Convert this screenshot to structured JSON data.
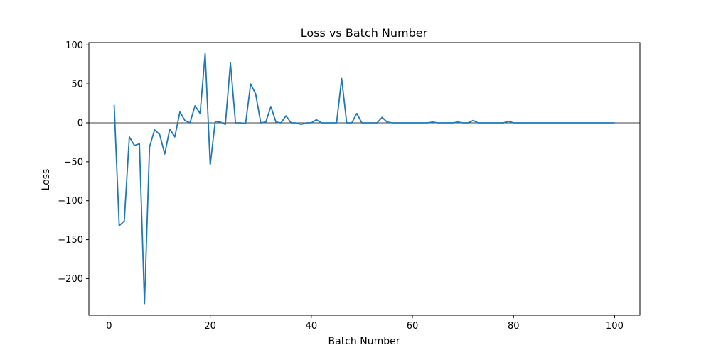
{
  "chart_data": {
    "type": "line",
    "title": "Loss vs Batch Number",
    "xlabel": "Batch Number",
    "ylabel": "Loss",
    "xlim": [
      -4,
      105
    ],
    "ylim": [
      -247,
      103
    ],
    "xticks": [
      0,
      20,
      40,
      60,
      80,
      100
    ],
    "yticks": [
      100,
      50,
      0,
      -50,
      -100,
      -150,
      -200
    ],
    "xtick_labels": [
      "0",
      "20",
      "40",
      "60",
      "80",
      "100"
    ],
    "ytick_labels": [
      "100",
      "50",
      "0",
      "−50",
      "−100",
      "−150",
      "−200"
    ],
    "grid": false,
    "reference_line": {
      "y": 0,
      "color": "#000000"
    },
    "series": [
      {
        "color": "#1f77b4",
        "x": [
          1,
          2,
          3,
          4,
          5,
          6,
          7,
          8,
          9,
          10,
          11,
          12,
          13,
          14,
          15,
          16,
          17,
          18,
          19,
          20,
          21,
          22,
          23,
          24,
          25,
          26,
          27,
          28,
          29,
          30,
          31,
          32,
          33,
          34,
          35,
          36,
          37,
          38,
          39,
          40,
          41,
          42,
          43,
          44,
          45,
          46,
          47,
          48,
          49,
          50,
          51,
          52,
          53,
          54,
          55,
          56,
          57,
          58,
          59,
          60,
          61,
          62,
          63,
          64,
          65,
          66,
          67,
          68,
          69,
          70,
          71,
          72,
          73,
          74,
          75,
          76,
          77,
          78,
          79,
          80,
          81,
          82,
          83,
          84,
          85,
          86,
          87,
          88,
          89,
          90,
          91,
          92,
          93,
          94,
          95,
          96,
          97,
          98,
          99,
          100
        ],
        "values": [
          23,
          -132,
          -126,
          -18,
          -29,
          -27,
          -232,
          -31,
          -9,
          -15,
          -40,
          -8,
          -18,
          14,
          3,
          0,
          22,
          12,
          89,
          -54,
          2,
          1,
          -2,
          77,
          0,
          0,
          -1,
          50,
          37,
          0,
          1,
          21,
          1,
          0,
          9,
          0,
          0,
          -2,
          0,
          0,
          4,
          0,
          0,
          0,
          0,
          57,
          0,
          0,
          12,
          0,
          0,
          0,
          0,
          7,
          1,
          0,
          0,
          0,
          0,
          0,
          0,
          0,
          0,
          1,
          0,
          0,
          0,
          0,
          1,
          0,
          0,
          3,
          0,
          0,
          0,
          0,
          0,
          0,
          2,
          0,
          0,
          0,
          0,
          0,
          0,
          0,
          0,
          0,
          0,
          0,
          0,
          0,
          0,
          0,
          0,
          0,
          0,
          0,
          0,
          0
        ]
      }
    ]
  }
}
